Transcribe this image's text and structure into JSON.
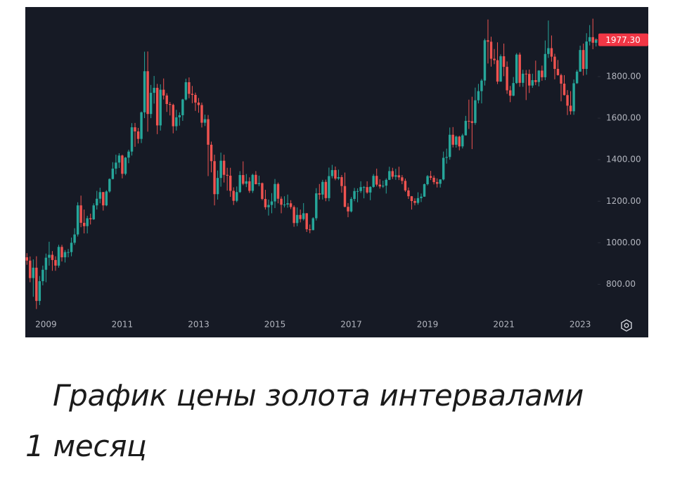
{
  "chart_data": {
    "type": "candlestick",
    "categories": [
      null,
      null,
      null,
      null,
      null,
      null,
      "2009",
      null,
      null,
      null,
      null,
      null,
      null,
      null,
      null,
      null,
      null,
      null,
      null,
      null,
      null,
      null,
      null,
      null,
      null,
      null,
      null,
      null,
      null,
      null,
      "2011",
      null,
      null,
      null,
      null,
      null,
      null,
      null,
      null,
      null,
      null,
      null,
      null,
      null,
      null,
      null,
      null,
      null,
      null,
      null,
      null,
      null,
      null,
      null,
      "2013",
      null,
      null,
      null,
      null,
      null,
      null,
      null,
      null,
      null,
      null,
      null,
      null,
      null,
      null,
      null,
      null,
      null,
      null,
      null,
      null,
      null,
      null,
      null,
      "2015",
      null,
      null,
      null,
      null,
      null,
      null,
      null,
      null,
      null,
      null,
      null,
      null,
      null,
      null,
      null,
      null,
      null,
      null,
      null,
      null,
      null,
      null,
      null,
      "2017",
      null,
      null,
      null,
      null,
      null,
      null,
      null,
      null,
      null,
      null,
      null,
      null,
      null,
      null,
      null,
      null,
      null,
      null,
      null,
      null,
      null,
      null,
      null,
      "2019",
      null,
      null,
      null,
      null,
      null,
      null,
      null,
      null,
      null,
      null,
      null,
      null,
      null,
      null,
      null,
      null,
      null,
      null,
      null,
      null,
      null,
      null,
      null,
      "2021",
      null,
      null,
      null,
      null,
      null,
      null,
      null,
      null,
      null,
      null,
      null,
      null,
      null,
      null,
      null,
      null,
      null,
      null,
      null,
      null,
      null,
      null,
      null,
      "2023",
      null,
      null,
      null,
      null,
      null
    ],
    "open": [
      930,
      914,
      830,
      880,
      720,
      815,
      870,
      928,
      942,
      917,
      890,
      980,
      930,
      955,
      955,
      1000,
      1040,
      1180,
      1096,
      1080,
      1118,
      1113,
      1180,
      1212,
      1244,
      1180,
      1247,
      1307,
      1357,
      1386,
      1420,
      1332,
      1410,
      1439,
      1556,
      1536,
      1500,
      1628,
      1826,
      1620,
      1722,
      1746,
      1565,
      1737,
      1709,
      1668,
      1664,
      1561,
      1604,
      1614,
      1690,
      1773,
      1717,
      1712,
      1675,
      1663,
      1578,
      1595,
      1472,
      1393,
      1234,
      1312,
      1395,
      1327,
      1323,
      1250,
      1202,
      1244,
      1326,
      1284,
      1296,
      1250,
      1327,
      1282,
      1287,
      1211,
      1171,
      1182,
      1199,
      1283,
      1212,
      1183,
      1184,
      1190,
      1172,
      1095,
      1134,
      1114,
      1142,
      1065,
      1061,
      1118,
      1238,
      1232,
      1293,
      1215,
      1321,
      1350,
      1309,
      1316,
      1273,
      1173,
      1151,
      1211,
      1249,
      1249,
      1268,
      1268,
      1242,
      1269,
      1322,
      1280,
      1271,
      1275,
      1303,
      1345,
      1318,
      1325,
      1315,
      1298,
      1252,
      1224,
      1201,
      1192,
      1215,
      1222,
      1282,
      1321,
      1313,
      1292,
      1284,
      1305,
      1409,
      1413,
      1520,
      1472,
      1511,
      1464,
      1517,
      1587,
      1585,
      1577,
      1686,
      1730,
      1781,
      1975,
      1968,
      1886,
      1879,
      1776,
      1898,
      1847,
      1734,
      1708,
      1769,
      1906,
      1770,
      1814,
      1813,
      1757,
      1783,
      1774,
      1829,
      1797,
      1909,
      1937,
      1896,
      1837,
      1807,
      1766,
      1711,
      1660,
      1633,
      1768,
      1824,
      1928,
      1837,
      1969,
      1990,
      1963
    ],
    "high": [
      950,
      934,
      920,
      935,
      840,
      890,
      948,
      1005,
      960,
      935,
      990,
      990,
      965,
      970,
      1025,
      1070,
      1195,
      1227,
      1160,
      1130,
      1140,
      1190,
      1250,
      1265,
      1245,
      1253,
      1310,
      1388,
      1424,
      1431,
      1424,
      1413,
      1448,
      1576,
      1577,
      1553,
      1632,
      1920,
      1921,
      1760,
      1803,
      1765,
      1763,
      1791,
      1720,
      1678,
      1670,
      1640,
      1628,
      1693,
      1790,
      1796,
      1755,
      1723,
      1697,
      1675,
      1617,
      1615,
      1487,
      1424,
      1348,
      1434,
      1424,
      1361,
      1361,
      1267,
      1271,
      1345,
      1392,
      1331,
      1315,
      1332,
      1345,
      1323,
      1290,
      1255,
      1208,
      1239,
      1307,
      1290,
      1223,
      1224,
      1232,
      1205,
      1180,
      1170,
      1160,
      1191,
      1143,
      1088,
      1123,
      1263,
      1283,
      1303,
      1304,
      1362,
      1375,
      1367,
      1352,
      1326,
      1338,
      1191,
      1220,
      1264,
      1262,
      1296,
      1273,
      1296,
      1272,
      1331,
      1357,
      1306,
      1299,
      1310,
      1366,
      1361,
      1356,
      1366,
      1326,
      1309,
      1266,
      1225,
      1214,
      1243,
      1237,
      1285,
      1326,
      1346,
      1324,
      1310,
      1306,
      1439,
      1453,
      1555,
      1557,
      1516,
      1515,
      1525,
      1611,
      1689,
      1703,
      1747,
      1765,
      1789,
      1983,
      2075,
      1992,
      1933,
      1965,
      1907,
      1959,
      1873,
      1755,
      1798,
      1913,
      1916,
      1833,
      1832,
      1834,
      1814,
      1877,
      1831,
      1853,
      1974,
      2070,
      1998,
      1910,
      1880,
      1814,
      1807,
      1735,
      1730,
      1786,
      1833,
      1949,
      1959,
      2009,
      2048,
      2079,
      1985
    ],
    "low": [
      894,
      810,
      740,
      681,
      700,
      795,
      810,
      890,
      865,
      865,
      880,
      910,
      905,
      930,
      935,
      990,
      1030,
      1075,
      1045,
      1045,
      1088,
      1110,
      1160,
      1190,
      1155,
      1176,
      1241,
      1305,
      1330,
      1360,
      1310,
      1325,
      1383,
      1420,
      1462,
      1478,
      1480,
      1600,
      1535,
      1600,
      1670,
      1523,
      1540,
      1690,
      1630,
      1613,
      1527,
      1540,
      1564,
      1587,
      1685,
      1696,
      1672,
      1635,
      1626,
      1555,
      1562,
      1321,
      1339,
      1180,
      1208,
      1270,
      1290,
      1251,
      1221,
      1182,
      1195,
      1240,
      1277,
      1268,
      1240,
      1240,
      1281,
      1272,
      1205,
      1160,
      1131,
      1142,
      1167,
      1190,
      1142,
      1170,
      1169,
      1162,
      1077,
      1080,
      1098,
      1107,
      1052,
      1046,
      1060,
      1107,
      1208,
      1208,
      1200,
      1200,
      1310,
      1301,
      1302,
      1241,
      1171,
      1123,
      1146,
      1200,
      1195,
      1240,
      1214,
      1236,
      1205,
      1265,
      1271,
      1261,
      1264,
      1237,
      1302,
      1307,
      1303,
      1302,
      1282,
      1245,
      1211,
      1160,
      1180,
      1183,
      1196,
      1221,
      1276,
      1302,
      1281,
      1266,
      1266,
      1300,
      1381,
      1400,
      1459,
      1458,
      1445,
      1454,
      1517,
      1548,
      1451,
      1568,
      1671,
      1671,
      1757,
      1863,
      1848,
      1860,
      1764,
      1775,
      1802,
      1717,
      1677,
      1706,
      1765,
      1751,
      1751,
      1687,
      1721,
      1746,
      1759,
      1753,
      1780,
      1783,
      1890,
      1872,
      1787,
      1805,
      1681,
      1709,
      1615,
      1617,
      1616,
      1765,
      1823,
      1805,
      1809,
      1950,
      1932,
      1945
    ],
    "close": [
      914,
      830,
      880,
      720,
      815,
      870,
      928,
      942,
      917,
      890,
      980,
      930,
      955,
      955,
      1000,
      1040,
      1180,
      1096,
      1080,
      1118,
      1113,
      1180,
      1212,
      1244,
      1180,
      1247,
      1307,
      1357,
      1386,
      1420,
      1332,
      1410,
      1439,
      1556,
      1536,
      1500,
      1628,
      1826,
      1620,
      1722,
      1746,
      1565,
      1737,
      1709,
      1668,
      1664,
      1561,
      1604,
      1614,
      1690,
      1773,
      1717,
      1712,
      1675,
      1663,
      1578,
      1595,
      1472,
      1393,
      1234,
      1312,
      1395,
      1327,
      1323,
      1250,
      1202,
      1244,
      1326,
      1284,
      1296,
      1250,
      1327,
      1282,
      1287,
      1211,
      1171,
      1182,
      1199,
      1283,
      1212,
      1183,
      1184,
      1190,
      1172,
      1095,
      1134,
      1114,
      1142,
      1065,
      1061,
      1118,
      1238,
      1232,
      1293,
      1215,
      1321,
      1350,
      1309,
      1316,
      1273,
      1173,
      1151,
      1211,
      1249,
      1249,
      1268,
      1268,
      1242,
      1269,
      1322,
      1280,
      1271,
      1275,
      1303,
      1345,
      1318,
      1325,
      1315,
      1298,
      1252,
      1224,
      1201,
      1192,
      1215,
      1222,
      1282,
      1321,
      1313,
      1292,
      1284,
      1305,
      1409,
      1413,
      1520,
      1472,
      1511,
      1464,
      1517,
      1587,
      1585,
      1577,
      1686,
      1730,
      1781,
      1975,
      1968,
      1886,
      1879,
      1776,
      1898,
      1847,
      1734,
      1708,
      1769,
      1906,
      1770,
      1814,
      1813,
      1757,
      1783,
      1774,
      1829,
      1797,
      1909,
      1937,
      1896,
      1837,
      1807,
      1766,
      1711,
      1660,
      1633,
      1768,
      1824,
      1928,
      1837,
      1969,
      1990,
      1963,
      1977.3
    ],
    "up_color": "#26a69a",
    "down_color": "#ef5350",
    "ylim": [
      651,
      2135
    ],
    "yticks": [
      {
        "value": 800,
        "label": "800.00"
      },
      {
        "value": 1000,
        "label": "1000.00"
      },
      {
        "value": 1200,
        "label": "1200.00"
      },
      {
        "value": 1400,
        "label": "1400.00"
      },
      {
        "value": 1600,
        "label": "1600.00"
      },
      {
        "value": 1800,
        "label": "1800.00"
      }
    ],
    "current_price": {
      "value": 1977.3,
      "label": "1977.30"
    },
    "current_price_color": "#f23645",
    "grid": false
  },
  "caption_lines": [
    "График цены золота интервалами",
    "1 месяц"
  ]
}
